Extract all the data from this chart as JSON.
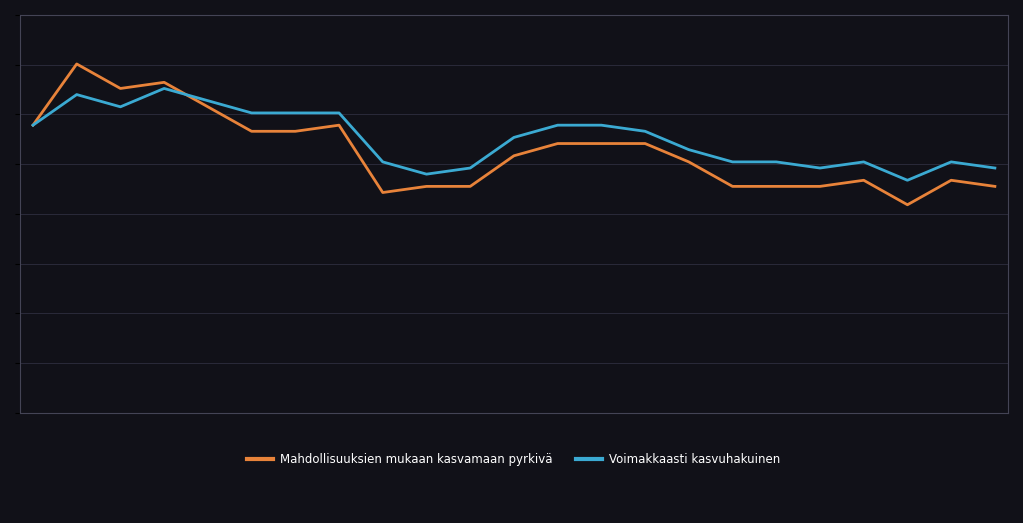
{
  "orange_values": [
    37,
    47,
    43,
    44,
    40,
    36,
    36,
    37,
    26,
    27,
    27,
    32,
    34,
    34,
    34,
    31,
    27,
    27,
    27,
    28,
    24,
    28,
    27
  ],
  "blue_values": [
    37,
    42,
    40,
    43,
    41,
    39,
    39,
    39,
    31,
    29,
    30,
    35,
    37,
    37,
    36,
    33,
    31,
    31,
    30,
    31,
    28,
    31,
    30
  ],
  "orange_color": "#E8833A",
  "blue_color": "#3BAAD2",
  "bg_color": "#111118",
  "grid_color": "#2a2a3a",
  "spine_color": "#444455",
  "ylim_min": -10,
  "ylim_max": 55,
  "ytick_interval": 10,
  "legend_label_orange": "Mahdollisuuksien mukaan kasvamaan pyrkivä",
  "legend_label_blue": "Voimakkaasti kasvuhakuinen",
  "legend_fontsize": 8.5,
  "linewidth": 2.0,
  "n_gridlines": 8
}
